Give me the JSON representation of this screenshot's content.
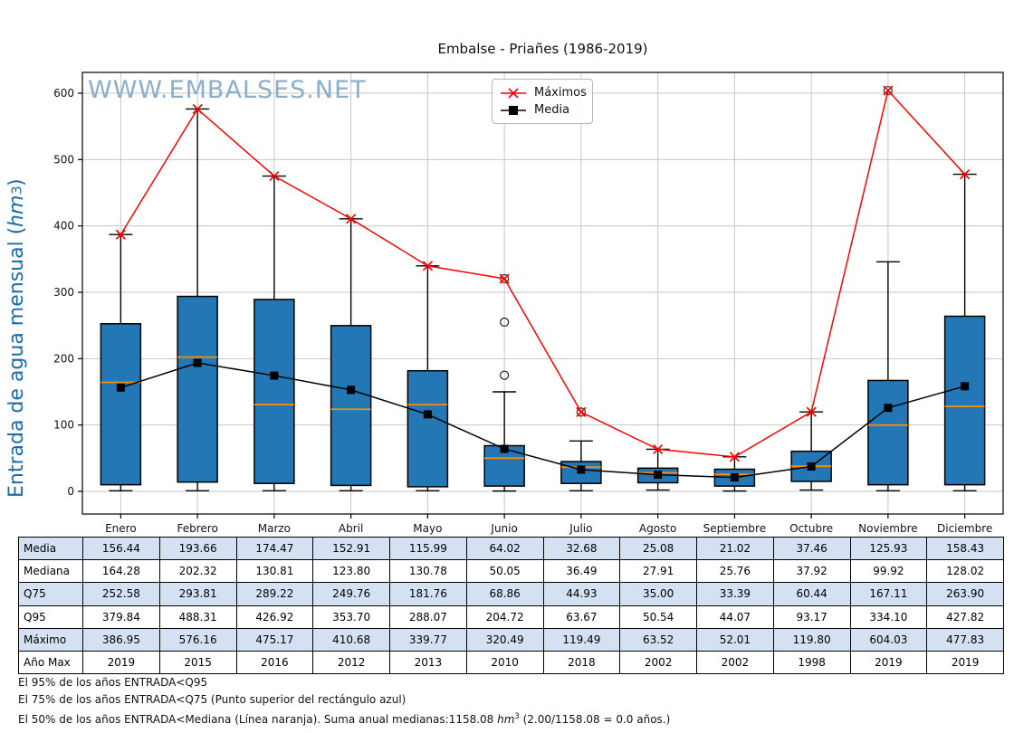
{
  "title": "Embalse - Priañes (1986-2019)",
  "watermark": "WWW.EMBALSES.NET",
  "ylabel": {
    "pre": "Entrada de agua mensual (",
    "unit": "hm",
    "exp": "3",
    "post": ")"
  },
  "chart_data": {
    "type": "box+line",
    "title": "Embalse - Priañes (1986-2019)",
    "ylabel": "Entrada de agua mensual (hm³)",
    "categories": [
      "Enero",
      "Febrero",
      "Marzo",
      "Abril",
      "Mayo",
      "Junio",
      "Julio",
      "Agosto",
      "Septiembre",
      "Octubre",
      "Noviembre",
      "Diciembre"
    ],
    "yticks": [
      0,
      100,
      200,
      300,
      400,
      500,
      600
    ],
    "ylim": [
      -34,
      632
    ],
    "grid": true,
    "legend_position": "upper center",
    "series": [
      {
        "name": "Máximos",
        "marker": "x",
        "color": "#ff0000",
        "values": [
          386.95,
          576.16,
          475.17,
          410.68,
          339.77,
          320.49,
          119.49,
          63.52,
          52.01,
          119.8,
          604.03,
          477.83
        ]
      },
      {
        "name": "Media",
        "marker": "square",
        "color": "#000000",
        "values": [
          156.44,
          193.66,
          174.47,
          152.91,
          115.99,
          64.02,
          32.68,
          25.08,
          21.02,
          37.46,
          125.93,
          158.43
        ]
      }
    ],
    "box": {
      "fill": "#2277b4",
      "edge": "#000000",
      "median_color": "#ff8c00",
      "median": [
        164.28,
        202.32,
        130.81,
        123.8,
        130.78,
        50.05,
        36.49,
        27.91,
        25.76,
        37.92,
        99.92,
        128.02
      ],
      "q75": [
        252.58,
        293.81,
        289.22,
        249.76,
        181.76,
        68.86,
        44.93,
        35.0,
        33.39,
        60.44,
        167.11,
        263.9
      ],
      "q95": [
        379.84,
        488.31,
        426.92,
        353.7,
        288.07,
        204.72,
        63.67,
        50.54,
        44.07,
        93.17,
        334.1,
        427.82
      ],
      "q25_estimated": [
        10,
        14,
        12,
        9,
        7,
        8,
        12,
        13,
        8,
        15,
        10,
        10
      ],
      "whisker_low_estimated": [
        1,
        1,
        1,
        1,
        1,
        0.5,
        1,
        2,
        0.5,
        2,
        1,
        1
      ],
      "whisker_high": [
        386.95,
        576.16,
        475.17,
        410.68,
        339.77,
        150,
        76,
        63.52,
        52.01,
        119.8,
        346,
        477.83
      ],
      "outliers": [
        [],
        [],
        [],
        [],
        [],
        [
          175,
          255,
          320.49
        ],
        [
          119.49
        ],
        [],
        [],
        [],
        [
          604.03
        ],
        []
      ]
    },
    "colors": {
      "grid": "#c6c6c6",
      "spine": "#000000",
      "watermark": "#8aaecb",
      "ylabel": "#1b6ca8"
    }
  },
  "table": {
    "stripe_color": "#d3e1f3",
    "rows": [
      {
        "label": "Media",
        "shaded": true,
        "values": [
          "156.44",
          "193.66",
          "174.47",
          "152.91",
          "115.99",
          "64.02",
          "32.68",
          "25.08",
          "21.02",
          "37.46",
          "125.93",
          "158.43"
        ]
      },
      {
        "label": "Mediana",
        "shaded": false,
        "values": [
          "164.28",
          "202.32",
          "130.81",
          "123.80",
          "130.78",
          "50.05",
          "36.49",
          "27.91",
          "25.76",
          "37.92",
          "99.92",
          "128.02"
        ]
      },
      {
        "label": "Q75",
        "shaded": true,
        "values": [
          "252.58",
          "293.81",
          "289.22",
          "249.76",
          "181.76",
          "68.86",
          "44.93",
          "35.00",
          "33.39",
          "60.44",
          "167.11",
          "263.90"
        ]
      },
      {
        "label": "Q95",
        "shaded": false,
        "values": [
          "379.84",
          "488.31",
          "426.92",
          "353.70",
          "288.07",
          "204.72",
          "63.67",
          "50.54",
          "44.07",
          "93.17",
          "334.10",
          "427.82"
        ]
      },
      {
        "label": "Máximo",
        "shaded": true,
        "values": [
          "386.95",
          "576.16",
          "475.17",
          "410.68",
          "339.77",
          "320.49",
          "119.49",
          "63.52",
          "52.01",
          "119.80",
          "604.03",
          "477.83"
        ]
      },
      {
        "label": "Año Max",
        "shaded": false,
        "values": [
          "2019",
          "2015",
          "2016",
          "2012",
          "2013",
          "2010",
          "2018",
          "2002",
          "2002",
          "1998",
          "2019",
          "2019"
        ]
      }
    ]
  },
  "footer": {
    "line1": "El 95% de los años ENTRADA<Q95",
    "line2": "El 75% de los años ENTRADA<Q75 (Punto superior del rectángulo azul)",
    "line3_pre": "El 50% de los años ENTRADA<Mediana (Línea naranja). Suma anual medianas:1158.08 ",
    "line3_unit": "hm",
    "line3_exp": "3",
    "line3_post": " (2.00/1158.08 = 0.0 años.)"
  }
}
